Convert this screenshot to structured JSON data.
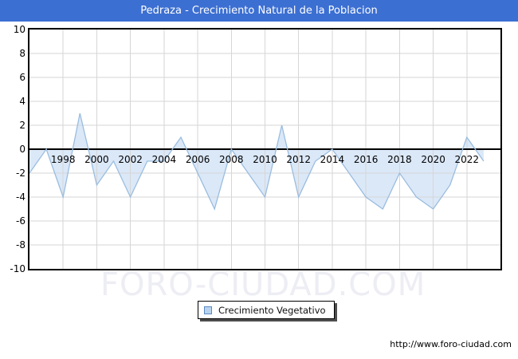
{
  "title": "Pedraza - Crecimiento Natural de la Poblacion",
  "watermark": "FORO-CIUDAD.COM",
  "legend": {
    "label": "Crecimiento Vegetativo"
  },
  "footer": {
    "url": "http://www.foro-ciudad.com"
  },
  "chart_data": {
    "type": "area",
    "title": "Pedraza - Crecimiento Natural de la Poblacion",
    "series_name": "Crecimiento Vegetativo",
    "x": [
      1996,
      1997,
      1998,
      1999,
      2000,
      2001,
      2002,
      2003,
      2004,
      2005,
      2006,
      2007,
      2008,
      2009,
      2010,
      2011,
      2012,
      2013,
      2014,
      2015,
      2016,
      2017,
      2018,
      2019,
      2020,
      2021,
      2022,
      2023
    ],
    "values": [
      -2,
      0,
      -4,
      3,
      -3,
      -1,
      -4,
      -1,
      -1,
      1,
      -2,
      -5,
      0,
      -2,
      -4,
      2,
      -4,
      -1,
      0,
      -2,
      -4,
      -5,
      -2,
      -4,
      -5,
      -3,
      1,
      -1
    ],
    "x_range": [
      1996,
      2024
    ],
    "ylim": [
      -10,
      10
    ],
    "yticks": [
      10,
      8,
      6,
      4,
      2,
      0,
      -2,
      -4,
      -6,
      -8,
      -10
    ],
    "xticks": [
      1998,
      2000,
      2002,
      2004,
      2006,
      2008,
      2010,
      2012,
      2014,
      2016,
      2018,
      2020,
      2022
    ],
    "grid": true,
    "baseline": 0,
    "fill_to_baseline": true,
    "legend_position": "bottom-center",
    "colors": {
      "titlebar": "#3c6fd2",
      "fill": "#dbe8f8",
      "line": "#9abddf",
      "grid": "#d6d6d6",
      "zero_axis": "#000000",
      "border": "#000000",
      "tick_text": "#000000",
      "watermark": "#ededf4",
      "legend_swatch_fill": "#b9d3ee",
      "legend_swatch_border": "#5a8ac2"
    }
  }
}
